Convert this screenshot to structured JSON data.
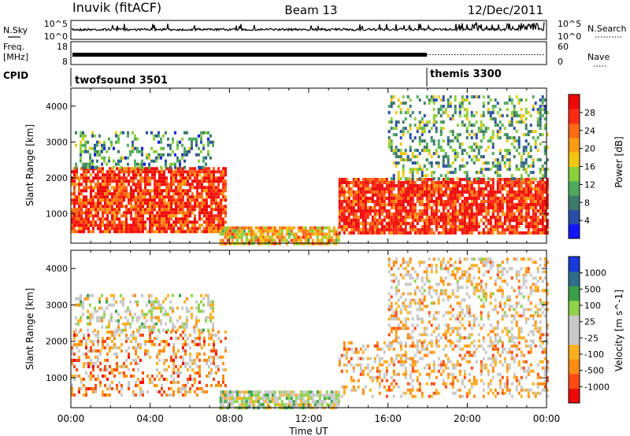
{
  "header": {
    "station": "Inuvik (fitACF)",
    "beam": "Beam 13",
    "date": "12/Dec/2011"
  },
  "noise_panel": {
    "left_label": "N.Sky",
    "right_label": "N.Search",
    "ticks": [
      "10^5",
      "10^0"
    ]
  },
  "freq_panel": {
    "left_label_line1": "Freq.",
    "left_label_line2": "[MHz]",
    "left_ticks": [
      "18",
      "8"
    ],
    "right_label": "Nave",
    "right_ticks": [
      "60",
      "0"
    ]
  },
  "cpid_panel": {
    "label": "CPID",
    "segments": [
      {
        "name": "twofsound 3501",
        "start_hour": 0,
        "end_hour": 18
      },
      {
        "name": "themis 3300",
        "start_hour": 18,
        "end_hour": 24
      }
    ]
  },
  "colors": {
    "power": [
      "#1414ff",
      "#2a4ea6",
      "#3d7a6a",
      "#4faa5e",
      "#8ccf3c",
      "#f0c814",
      "#ff9c14",
      "#ff6a14",
      "#ff2a14",
      "#ee0a0a"
    ],
    "velocity": [
      "#ee0a0a",
      "#ff4a14",
      "#ff8c14",
      "#ffb020",
      "#c8c8c8",
      "#c8c8c8",
      "#8ed24a",
      "#3aa04a",
      "#2e6e8c",
      "#1a3ad8"
    ]
  },
  "chart_data": [
    {
      "type": "heatmap",
      "name": "power",
      "xlabel": "",
      "ylabel": "Slant Range [km]",
      "x_range_hours": [
        0,
        24
      ],
      "ylim": [
        180,
        4500
      ],
      "yticks": [
        1000,
        2000,
        3000,
        4000
      ],
      "colorbar": {
        "label": "Power [dB]",
        "range": [
          0,
          32
        ],
        "ticks": [
          "4",
          "8",
          "12",
          "16",
          "20",
          "24",
          "28"
        ]
      },
      "regions": [
        {
          "x": [
            0.0,
            7.8
          ],
          "y": [
            500,
            2300
          ],
          "level": 0.85
        },
        {
          "x": [
            0.2,
            7.2
          ],
          "y": [
            2300,
            3300
          ],
          "level": 0.3
        },
        {
          "x": [
            7.5,
            13.5
          ],
          "y": [
            200,
            650
          ],
          "level": 0.6
        },
        {
          "x": [
            13.5,
            24.0
          ],
          "y": [
            500,
            2000
          ],
          "level": 0.88
        },
        {
          "x": [
            16.0,
            24.0
          ],
          "y": [
            2000,
            4300
          ],
          "level": 0.35
        }
      ]
    },
    {
      "type": "heatmap",
      "name": "velocity",
      "xlabel": "Time UT",
      "ylabel": "Slant Range [km]",
      "x_range_hours": [
        0,
        24
      ],
      "xticks": [
        "00:00",
        "04:00",
        "08:00",
        "12:00",
        "16:00",
        "20:00",
        "00:00"
      ],
      "ylim": [
        180,
        4500
      ],
      "yticks": [
        1000,
        2000,
        3000,
        4000
      ],
      "colorbar": {
        "label": "Velocity [m s^-1]",
        "range": [
          -1200,
          1200
        ],
        "ticks": [
          "1000",
          "500",
          "100",
          "25",
          "-25",
          "-100",
          "-500",
          "-1000"
        ]
      },
      "regions": [
        {
          "x": [
            0.0,
            7.8
          ],
          "y": [
            500,
            2300
          ],
          "level": 0.3
        },
        {
          "x": [
            0.2,
            7.2
          ],
          "y": [
            2300,
            3300
          ],
          "level": 0.5
        },
        {
          "x": [
            7.5,
            13.5
          ],
          "y": [
            200,
            650
          ],
          "level": 0.55
        },
        {
          "x": [
            13.5,
            24.0
          ],
          "y": [
            500,
            2000
          ],
          "level": 0.35
        },
        {
          "x": [
            16.0,
            24.0
          ],
          "y": [
            2000,
            4300
          ],
          "level": 0.4
        }
      ]
    }
  ]
}
